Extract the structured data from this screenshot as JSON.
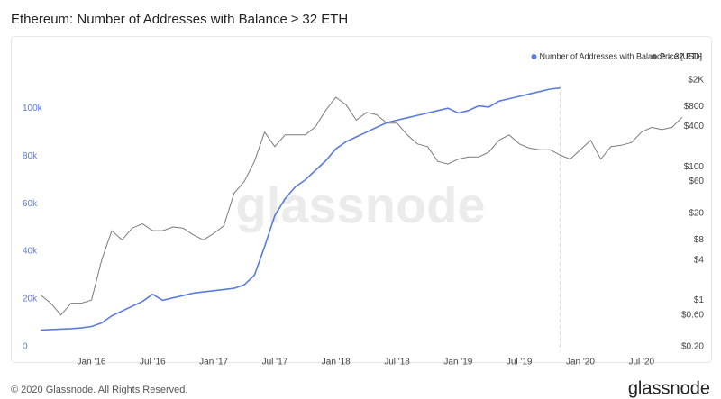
{
  "chart_data": {
    "type": "line",
    "title": "Ethereum: Number of Addresses with Balance ≥ 32 ETH",
    "watermark": "glassnode",
    "footer": "© 2020 Glassnode. All Rights Reserved.",
    "logo": "glassnode",
    "x": [
      "2015-08",
      "2015-09",
      "2015-10",
      "2015-11",
      "2015-12",
      "2016-01",
      "2016-02",
      "2016-03",
      "2016-04",
      "2016-05",
      "2016-06",
      "2016-07",
      "2016-08",
      "2016-09",
      "2016-10",
      "2016-11",
      "2016-12",
      "2017-01",
      "2017-02",
      "2017-03",
      "2017-04",
      "2017-05",
      "2017-06",
      "2017-07",
      "2017-08",
      "2017-09",
      "2017-10",
      "2017-11",
      "2017-12",
      "2018-01",
      "2018-02",
      "2018-03",
      "2018-04",
      "2018-05",
      "2018-06",
      "2018-07",
      "2018-08",
      "2018-09",
      "2018-10",
      "2018-11",
      "2018-12",
      "2019-01",
      "2019-02",
      "2019-03",
      "2019-04",
      "2019-05",
      "2019-06",
      "2019-07",
      "2019-08",
      "2019-09",
      "2019-10",
      "2019-11",
      "2019-12",
      "2020-01",
      "2020-02",
      "2020-03",
      "2020-04",
      "2020-05",
      "2020-06",
      "2020-07",
      "2020-08",
      "2020-09",
      "2020-10",
      "2020-11"
    ],
    "xlim": [
      "2015-08",
      "2020-11"
    ],
    "xticks": [
      {
        "value": "2016-01",
        "label": "Jan '16"
      },
      {
        "value": "2016-07",
        "label": "Jul '16"
      },
      {
        "value": "2017-01",
        "label": "Jan '17"
      },
      {
        "value": "2017-07",
        "label": "Jul '17"
      },
      {
        "value": "2018-01",
        "label": "Jan '18"
      },
      {
        "value": "2018-07",
        "label": "Jul '18"
      },
      {
        "value": "2019-01",
        "label": "Jan '19"
      },
      {
        "value": "2019-07",
        "label": "Jul '19"
      },
      {
        "value": "2020-01",
        "label": "Jan '20"
      },
      {
        "value": "2020-07",
        "label": "Jul '20"
      }
    ],
    "ylim": [
      0,
      125000
    ],
    "yticks": [
      0,
      {
        "value": 20000,
        "label": "20k"
      },
      {
        "value": 40000,
        "label": "40k"
      },
      {
        "value": 60000,
        "label": "60k"
      },
      {
        "value": 80000,
        "label": "80k"
      },
      {
        "value": 100000,
        "label": "100k"
      }
    ],
    "y2lim": [
      0.2,
      5900
    ],
    "y2scale": "log",
    "y2ticks": [
      {
        "value": 0.2,
        "label": "$0.20"
      },
      {
        "value": 0.6,
        "label": "$0.60"
      },
      {
        "value": 1,
        "label": "$1"
      },
      {
        "value": 4,
        "label": "$4"
      },
      {
        "value": 8,
        "label": "$8"
      },
      {
        "value": 20,
        "label": "$20"
      },
      {
        "value": 60,
        "label": "$60"
      },
      {
        "value": 100,
        "label": "$100"
      },
      {
        "value": 400,
        "label": "$400"
      },
      {
        "value": 800,
        "label": "$800"
      },
      {
        "value": 2000,
        "label": "$2K"
      }
    ],
    "vline": "2019-11",
    "vline_color": "#f6d58a",
    "grid": false,
    "legend": "top-right",
    "series": [
      {
        "name": "Number of Addresses with Balance ≥ 32 ETH",
        "color": "#5b7be0",
        "axis": "y",
        "values": [
          7000,
          7200,
          7400,
          7600,
          7900,
          8500,
          10000,
          13000,
          15000,
          17000,
          19000,
          22000,
          19500,
          20500,
          21500,
          22500,
          23000,
          23500,
          24000,
          24500,
          26000,
          30000,
          42000,
          55000,
          62000,
          67000,
          70000,
          74000,
          78000,
          83000,
          86000,
          88000,
          90000,
          92000,
          94000,
          95000,
          96000,
          97000,
          98000,
          99000,
          100000,
          98000,
          99000,
          101000,
          100500,
          103000,
          104000,
          105000,
          106000,
          107000,
          108000,
          108500,
          null,
          null,
          null,
          null,
          null,
          null,
          null,
          null,
          null,
          null,
          null,
          null
        ]
      },
      {
        "name": "Price [USD]",
        "color": "#7a7a7a",
        "axis": "y2",
        "values": [
          1.2,
          0.9,
          0.6,
          0.9,
          0.9,
          1.0,
          4,
          11,
          8,
          12,
          14,
          11,
          11,
          12.5,
          12,
          9.5,
          8,
          10,
          13,
          40,
          60,
          120,
          330,
          200,
          300,
          300,
          300,
          400,
          700,
          1100,
          850,
          500,
          650,
          600,
          450,
          450,
          300,
          220,
          200,
          120,
          110,
          130,
          140,
          140,
          165,
          250,
          300,
          220,
          190,
          180,
          180,
          150,
          130,
          180,
          250,
          130,
          200,
          210,
          230,
          330,
          390,
          360,
          390,
          550
        ]
      }
    ]
  }
}
